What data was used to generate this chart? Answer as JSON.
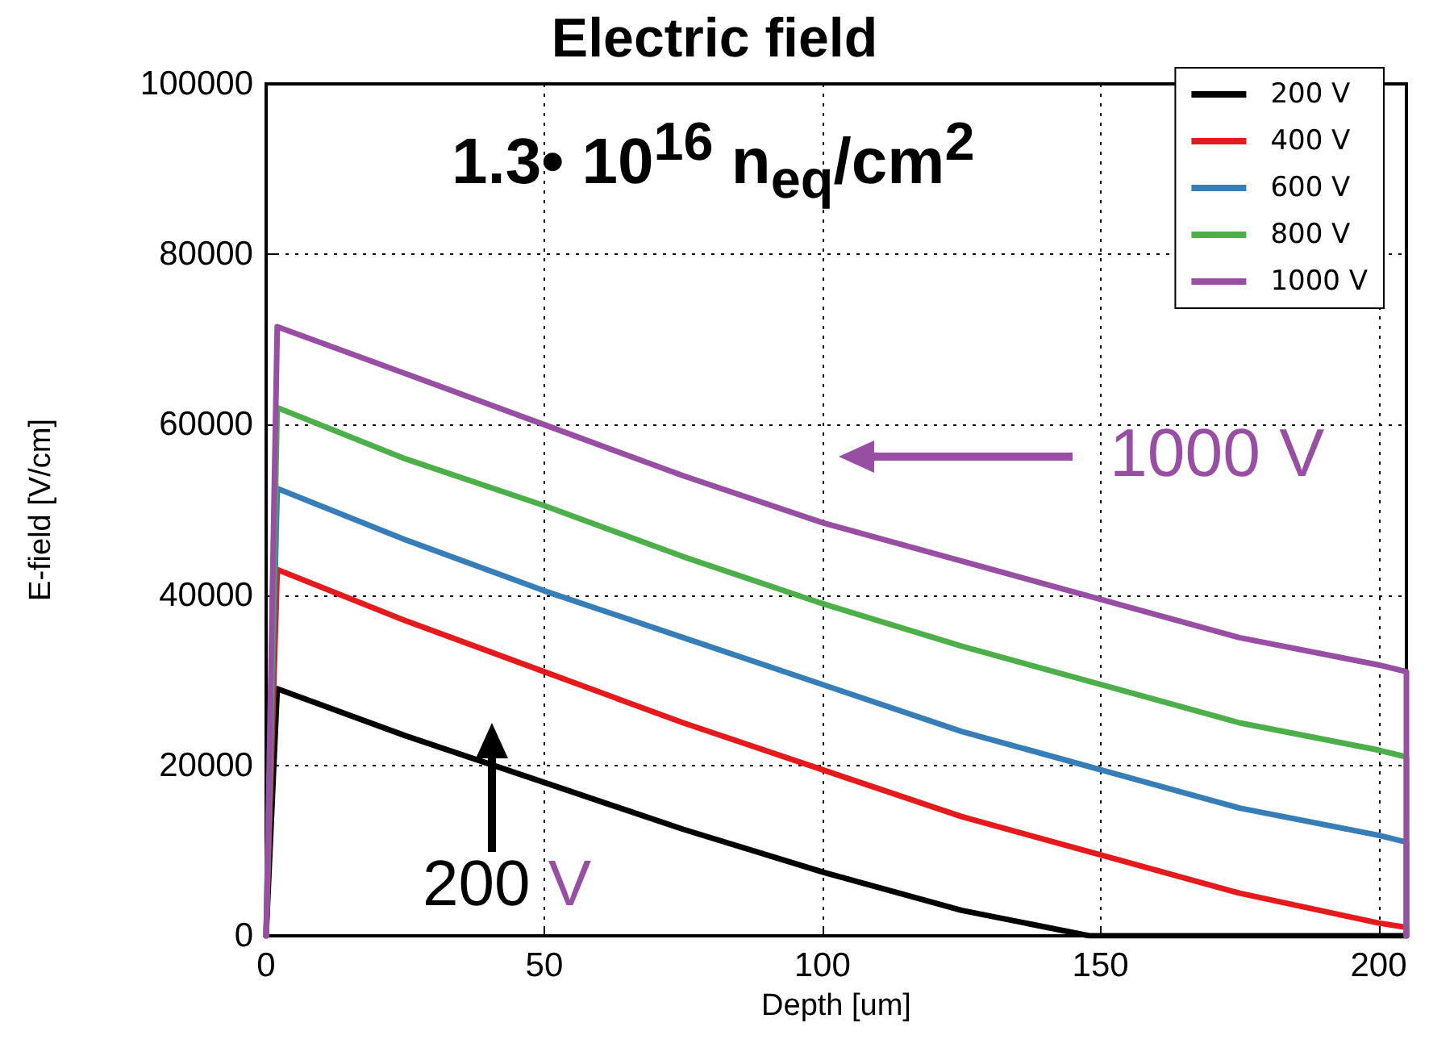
{
  "chart_data": {
    "type": "line",
    "title": "Electric field",
    "xlabel": "Depth [um]",
    "ylabel": "E-field [V/cm]",
    "annotations": [
      "1.3• 10$^{16}$ n$_{eq}$/cm$^{2}$",
      "1000 V",
      "200 V"
    ],
    "series": [
      {
        "name": "200 V",
        "color": "#000000",
        "x": [
          0,
          2,
          25,
          50,
          75,
          100,
          125,
          148,
          175,
          205,
          205
        ],
        "values": [
          0,
          29000,
          23500,
          18000,
          12500,
          7500,
          3000,
          0,
          0,
          0,
          0
        ]
      },
      {
        "name": "400 V",
        "color": "#e41a1c",
        "x": [
          0,
          2,
          25,
          50,
          75,
          100,
          125,
          150,
          175,
          200,
          205,
          205
        ],
        "values": [
          0,
          43000,
          37000,
          31000,
          25000,
          19500,
          14000,
          9500,
          5000,
          1500,
          1000,
          0
        ]
      },
      {
        "name": "600 V",
        "color": "#377eb8",
        "x": [
          0,
          2,
          25,
          50,
          75,
          100,
          125,
          150,
          175,
          200,
          205,
          205
        ],
        "values": [
          0,
          52500,
          46500,
          40500,
          35000,
          29500,
          24000,
          19500,
          15000,
          11800,
          11000,
          0
        ]
      },
      {
        "name": "800 V",
        "color": "#4daf4a",
        "x": [
          0,
          2,
          25,
          50,
          75,
          100,
          125,
          150,
          175,
          200,
          205,
          205
        ],
        "values": [
          0,
          62000,
          56000,
          50500,
          44500,
          39000,
          34000,
          29500,
          25000,
          21800,
          21000,
          0
        ]
      },
      {
        "name": "1000 V",
        "color": "#984ea3",
        "x": [
          0,
          2,
          25,
          50,
          75,
          100,
          125,
          150,
          175,
          200,
          205,
          205
        ],
        "values": [
          0,
          71500,
          66000,
          60000,
          54000,
          48500,
          44000,
          39500,
          35000,
          31800,
          31000,
          0
        ]
      }
    ],
    "xlim": [
      0,
      205
    ],
    "xticks": [
      0,
      50,
      100,
      150,
      200
    ],
    "ylim": [
      0,
      100000
    ],
    "yticks": [
      0,
      20000,
      40000,
      60000,
      80000,
      100000
    ],
    "grid": true,
    "legend": "top right",
    "marker": "none",
    "line_style": "solid"
  }
}
